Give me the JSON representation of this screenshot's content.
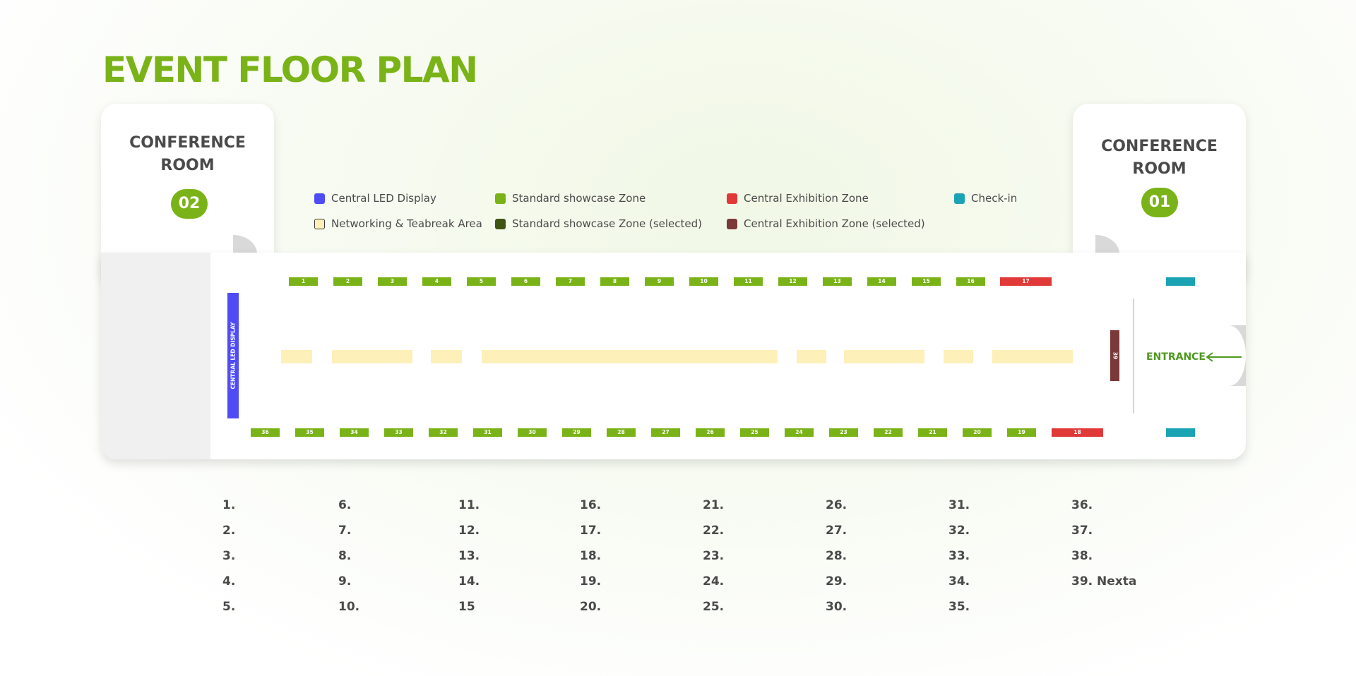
{
  "title": "EVENT FLOOR PLAN",
  "rooms": {
    "left": {
      "name_line1": "CONFERENCE",
      "name_line2": "ROOM",
      "number": "02"
    },
    "right": {
      "name_line1": "CONFERENCE",
      "name_line2": "ROOM",
      "number": "01"
    }
  },
  "legend": [
    {
      "label": "Central LED Display",
      "color": "#4f4cf5"
    },
    {
      "label": "Standard showcase Zone",
      "color": "#7ab317"
    },
    {
      "label": "Central Exhibition Zone",
      "color": "#e13838"
    },
    {
      "label": "Check-in",
      "color": "#1aa3b3"
    },
    {
      "label": "Networking & Teabreak Area",
      "color": "#fdf0b8"
    },
    {
      "label": "Standard showcase Zone (selected)",
      "color": "#3f5413"
    },
    {
      "label": "Central Exhibition Zone (selected)",
      "color": "#7b3838"
    }
  ],
  "floor": {
    "led_label": "CENTRAL LED DISPLAY",
    "entrance_label": "ENTRANCE",
    "top_booths": [
      "1",
      "2",
      "3",
      "4",
      "5",
      "6",
      "7",
      "8",
      "9",
      "10",
      "11",
      "12",
      "13",
      "14",
      "15",
      "16",
      "17"
    ],
    "bottom_booths": [
      "36",
      "35",
      "34",
      "33",
      "32",
      "31",
      "30",
      "29",
      "28",
      "27",
      "26",
      "25",
      "24",
      "23",
      "22",
      "21",
      "20",
      "19",
      "18"
    ],
    "center_booth": "39"
  },
  "booth_list": [
    [
      "1.",
      "2.",
      "3.",
      "4.",
      "5."
    ],
    [
      "6.",
      "7.",
      "8.",
      "9.",
      "10."
    ],
    [
      "11.",
      "12.",
      "13.",
      "14.",
      "15"
    ],
    [
      "16.",
      "17.",
      "18.",
      "19.",
      "20."
    ],
    [
      "21.",
      "22.",
      "23.",
      "24.",
      "25."
    ],
    [
      "26.",
      "27.",
      "28.",
      "29.",
      "30."
    ],
    [
      "31.",
      "32.",
      "33.",
      "34.",
      "35."
    ],
    [
      "36.",
      "37.",
      "38.",
      "39. Nexta"
    ]
  ]
}
